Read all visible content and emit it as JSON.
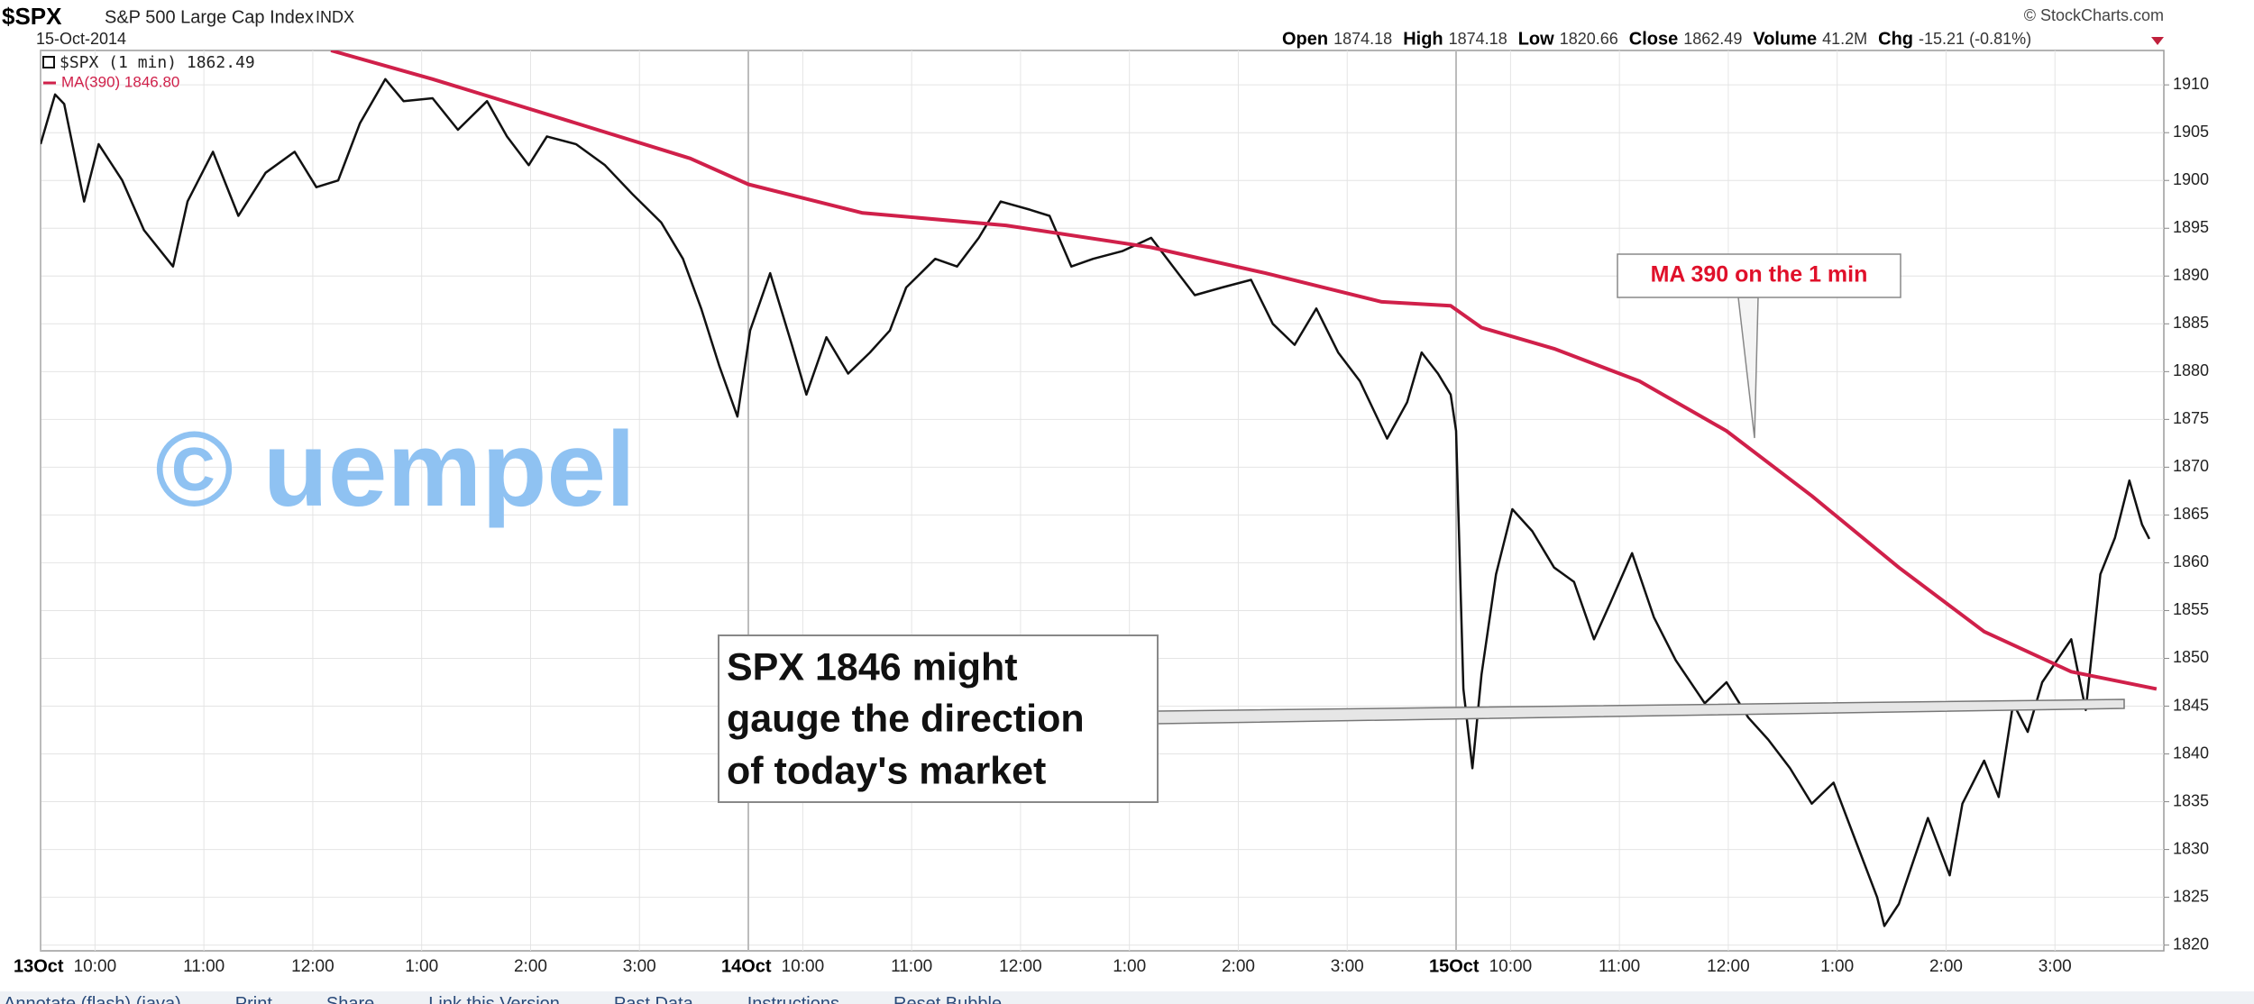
{
  "header": {
    "symbol": "$SPX",
    "name": "S&P 500 Large Cap Index",
    "exchange": "INDX",
    "date": "15-Oct-2014",
    "credit": "© StockCharts.com",
    "stats": [
      {
        "label": "Open",
        "value": 1874.18
      },
      {
        "label": "High",
        "value": 1874.18
      },
      {
        "label": "Low",
        "value": 1820.66
      },
      {
        "label": "Close",
        "value": 1862.49
      },
      {
        "label": "Volume",
        "value": "41.2M"
      },
      {
        "label": "Chg",
        "value": "-15.21 (-0.81%)"
      }
    ]
  },
  "toolbar": [
    "Annotate (flash) (java)",
    "Print",
    "Share",
    "Link this Version",
    "Past Data",
    "Instructions",
    "Reset Bubble"
  ],
  "chart_data": {
    "type": "line",
    "grid": true,
    "watermark": "© uempel",
    "annotations": {
      "ma": "MA 390 on the 1 min",
      "level": [
        "SPX 1846 might",
        "gauge the direction",
        "of today's market"
      ]
    },
    "xlim": [
      0,
      1170
    ],
    "xticks": [
      {
        "value": 0,
        "label": "13Oct"
      },
      {
        "value": 30,
        "label": "10:00"
      },
      {
        "value": 90,
        "label": "11:00"
      },
      {
        "value": 150,
        "label": "12:00"
      },
      {
        "value": 210,
        "label": "1:00"
      },
      {
        "value": 270,
        "label": "2:00"
      },
      {
        "value": 330,
        "label": "3:00"
      },
      {
        "value": 390,
        "label": "14Oct"
      },
      {
        "value": 420,
        "label": "10:00"
      },
      {
        "value": 480,
        "label": "11:00"
      },
      {
        "value": 540,
        "label": "12:00"
      },
      {
        "value": 600,
        "label": "1:00"
      },
      {
        "value": 660,
        "label": "2:00"
      },
      {
        "value": 720,
        "label": "3:00"
      },
      {
        "value": 780,
        "label": "15Oct"
      },
      {
        "value": 810,
        "label": "10:00"
      },
      {
        "value": 870,
        "label": "11:00"
      },
      {
        "value": 930,
        "label": "12:00"
      },
      {
        "value": 990,
        "label": "1:00"
      },
      {
        "value": 1050,
        "label": "2:00"
      },
      {
        "value": 1110,
        "label": "3:00"
      }
    ],
    "ylim": [
      1819.4,
      1913.6
    ],
    "yticks": [
      1820,
      1825,
      1830,
      1835,
      1840,
      1845,
      1850,
      1855,
      1860,
      1865,
      1870,
      1875,
      1880,
      1885,
      1890,
      1895,
      1900,
      1905,
      1910
    ],
    "series": [
      {
        "name": "$SPX (1 min) 1862.49",
        "color": "#111111",
        "x": [
          0,
          8,
          13,
          24,
          32,
          45,
          57,
          73,
          81,
          95,
          109,
          124,
          140,
          152,
          164,
          176,
          190,
          200,
          216,
          230,
          246,
          257,
          269,
          279,
          295,
          311,
          326,
          342,
          354,
          364,
          374,
          384,
          391,
          402,
          414,
          422,
          433,
          445,
          457,
          468,
          477,
          493,
          505,
          517,
          529,
          544,
          556,
          568,
          580,
          596,
          612,
          624,
          636,
          651,
          667,
          679,
          691,
          703,
          715,
          727,
          742,
          753,
          761,
          770,
          777,
          780,
          784,
          789,
          794,
          802,
          811,
          822,
          834,
          845,
          856,
          865,
          877,
          889,
          901,
          917,
          929,
          941,
          952,
          964,
          976,
          988,
          1000,
          1012,
          1016,
          1024,
          1032,
          1040,
          1052,
          1059,
          1071,
          1079,
          1087,
          1095,
          1103,
          1119,
          1127,
          1135,
          1143,
          1151,
          1158,
          1162
        ],
        "values": [
          1903.8,
          1909,
          1908,
          1897.8,
          1903.8,
          1900,
          1894.8,
          1891,
          1897.8,
          1903,
          1896.3,
          1900.8,
          1903,
          1899.3,
          1900,
          1906,
          1910.6,
          1908.3,
          1908.6,
          1905.3,
          1908.3,
          1904.6,
          1901.6,
          1904.6,
          1903.8,
          1901.6,
          1898.6,
          1895.6,
          1891.8,
          1886.6,
          1880.6,
          1875.3,
          1884.3,
          1890.3,
          1882.8,
          1877.6,
          1883.6,
          1879.8,
          1882,
          1884.3,
          1888.8,
          1891.8,
          1891,
          1894,
          1897.8,
          1897,
          1896.3,
          1891,
          1891.8,
          1892.6,
          1894,
          1891,
          1888,
          1888.8,
          1889.6,
          1885,
          1882.8,
          1886.6,
          1882,
          1879,
          1873,
          1876.8,
          1882,
          1879.8,
          1877.6,
          1873.8,
          1846.8,
          1838.5,
          1848.3,
          1858.8,
          1865.6,
          1863.3,
          1859.5,
          1858,
          1852,
          1855.8,
          1861,
          1854.3,
          1849.8,
          1845.3,
          1847.5,
          1843.8,
          1841.5,
          1838.5,
          1834.8,
          1837,
          1831,
          1825,
          1822,
          1824.3,
          1828.8,
          1833.3,
          1827.3,
          1834.8,
          1839.3,
          1835.5,
          1845.3,
          1842.3,
          1847.5,
          1852,
          1844.6,
          1858.8,
          1862.6,
          1868.6,
          1864,
          1862.5
        ]
      },
      {
        "name": "MA(390) 1846.80",
        "color": "#d0204a",
        "x": [
          160,
          216,
          295,
          358,
          390,
          453,
          532,
          612,
          675,
          739,
          777,
          794,
          834,
          881,
          929,
          976,
          1024,
          1071,
          1119,
          1166
        ],
        "values": [
          1913.6,
          1910.6,
          1906,
          1902.3,
          1899.6,
          1896.6,
          1895.3,
          1893,
          1890.3,
          1887.3,
          1886.9,
          1884.6,
          1882.4,
          1879,
          1873.8,
          1867,
          1859.5,
          1852.8,
          1848.6,
          1846.8
        ]
      }
    ]
  }
}
